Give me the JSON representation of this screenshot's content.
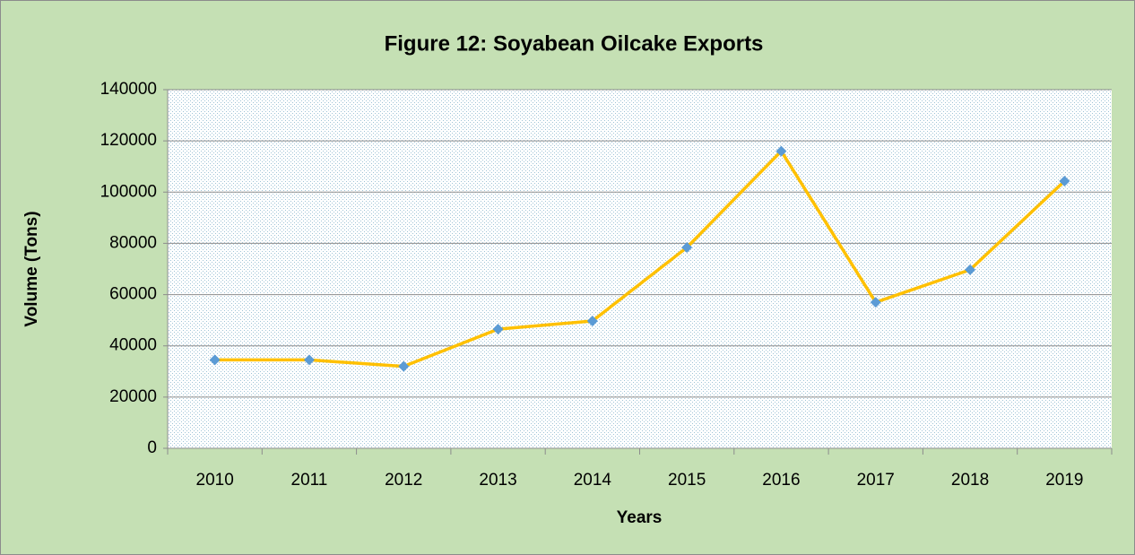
{
  "chart_data": {
    "type": "line",
    "title": "Figure 12: Soyabean Oilcake Exports",
    "x_label": "Years",
    "y_label": "Volume (Tons)",
    "categories": [
      "2010",
      "2011",
      "2012",
      "2013",
      "2014",
      "2015",
      "2016",
      "2017",
      "2018",
      "2019"
    ],
    "series": [
      {
        "name": "Volume",
        "color": "#ffc000",
        "marker_color": "#5b9bd5",
        "values": [
          34500,
          34500,
          32000,
          46500,
          49700,
          78400,
          116000,
          57000,
          69700,
          104300
        ]
      }
    ],
    "ylim": [
      0,
      140000
    ],
    "yticks": [
      0,
      20000,
      40000,
      60000,
      80000,
      100000,
      120000,
      140000
    ],
    "grid": true
  }
}
